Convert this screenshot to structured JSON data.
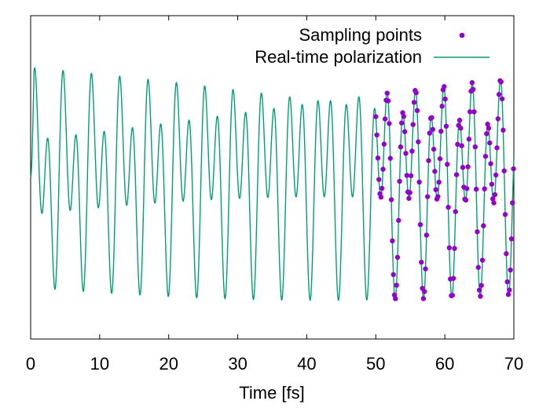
{
  "chart_data": {
    "type": "line",
    "title": "",
    "xlabel": "Time [fs]",
    "ylabel": "",
    "xlim": [
      0,
      70
    ],
    "ylim": [
      -1.25,
      1.25
    ],
    "xticks": [
      0,
      10,
      20,
      30,
      40,
      50,
      60,
      70
    ],
    "xtick_labels": [
      "0",
      "10",
      "20",
      "30",
      "40",
      "50",
      "60",
      "70"
    ],
    "show_yticks": false,
    "grid": false,
    "legend_position": "top-right",
    "colors": {
      "line": "#009e73",
      "points": "#9400d3"
    },
    "series": [
      {
        "name": "Real-time polarization",
        "kind": "line",
        "model": {
          "t_range": [
            0,
            70
          ],
          "components": [
            {
              "amplitude": 0.55,
              "period_fs": 2.05
            },
            {
              "amplitude": 0.4,
              "period_fs": 4.15
            }
          ]
        }
      },
      {
        "name": "Sampling points",
        "kind": "scatter",
        "t_range": [
          50,
          70
        ],
        "step_fs": 0.15
      }
    ]
  }
}
